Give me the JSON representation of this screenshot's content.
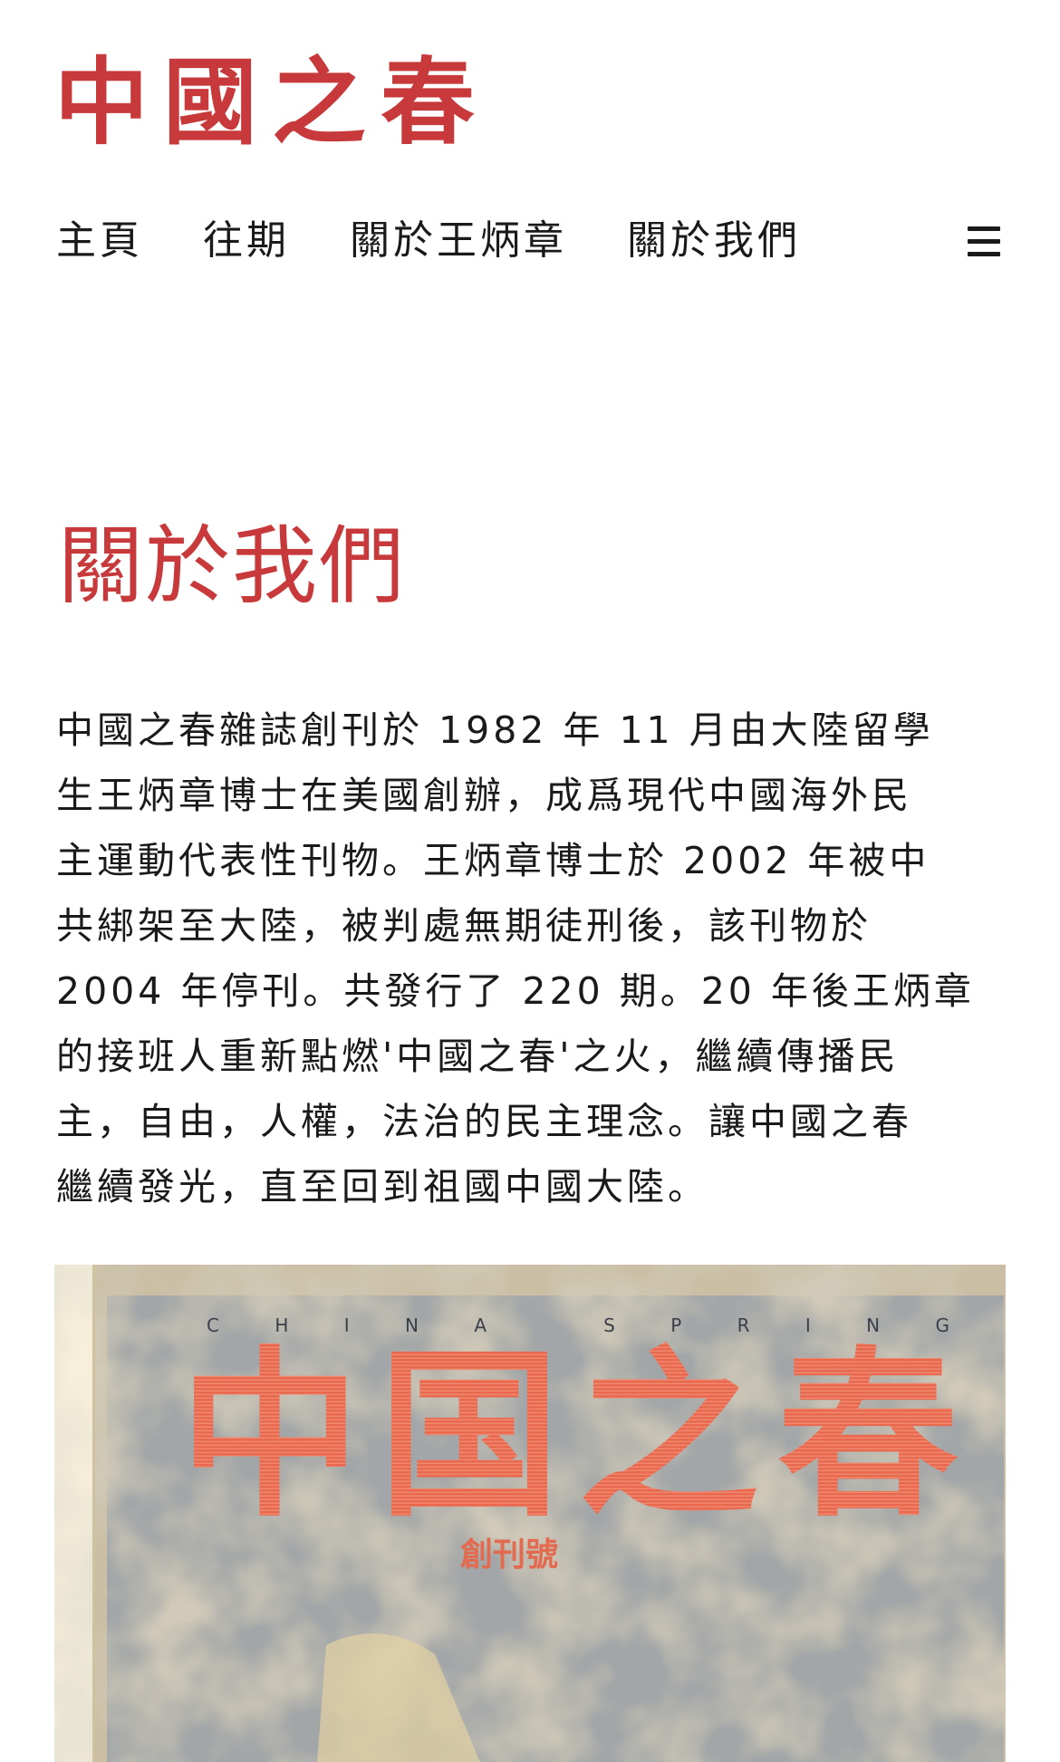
{
  "colors": {
    "accent": "#c8393b",
    "text": "#1a1a1a",
    "background": "#ffffff",
    "cover_paper": "#ead8b0",
    "cover_blue": "#8f9fb6",
    "cover_print": "#e8694f"
  },
  "header": {
    "logo_text": "中國之春",
    "menu_icon": "hamburger-menu-icon"
  },
  "nav": {
    "items": [
      {
        "label": "主頁"
      },
      {
        "label": "往期"
      },
      {
        "label": "關於王炳章"
      },
      {
        "label": "關於我們"
      }
    ]
  },
  "main": {
    "title": "關於我們",
    "paragraph": "中國之春雜誌創刊於 1982 年 11 月由大陸留學\n生王炳章博士在美國創辦，成爲現代中國海外民\n主運動代表性刊物。王炳章博士於 2002 年被中\n共綁架至大陸，被判處無期徒刑後，該刊物於\n2004 年停刊。共發行了 220 期。20 年後王炳章\n的接班人重新點燃'中國之春'之火，繼續傳播民\n主，自由，人權，法治的民主理念。讓中國之春\n繼續發光，直至回到祖國中國大陸。",
    "cover_image": {
      "english_title": "CHINA SPRING",
      "chinese_title": "中国之春",
      "issue_label": "創刊號"
    }
  }
}
